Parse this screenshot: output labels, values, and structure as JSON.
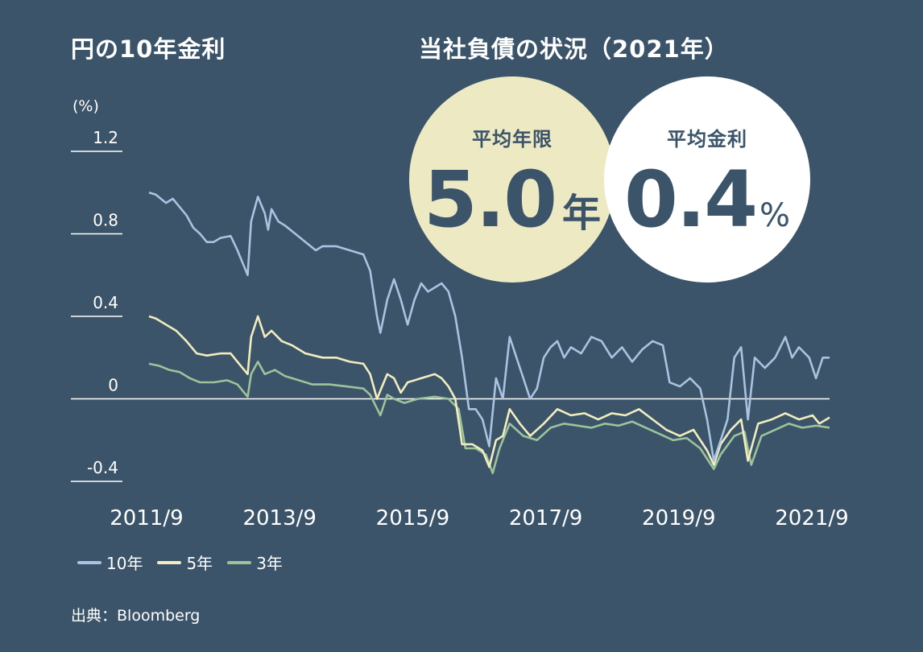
{
  "chart_title": "円の10年金利",
  "panel_title": "当社負債の状況（2021年）",
  "source": "出典：Bloomberg",
  "stats": {
    "avg_years_label": "平均年限",
    "avg_years_value": "5.0",
    "avg_years_unit": "年",
    "avg_rate_label": "平均金利",
    "avg_rate_value": "0.4",
    "avg_rate_unit": "%"
  },
  "colors": {
    "background": "#3b5469",
    "yield_10y": "#a9c3e0",
    "yield_5y": "#f2edbe",
    "yield_3y": "#9cc39a",
    "circle_years": "#ede9c2",
    "circle_rate": "#ffffff"
  },
  "chart_data": {
    "type": "line",
    "title": "円の10年金利",
    "ylabel": "(%)",
    "xlabel": "",
    "x_ticks": [
      "2011/9",
      "2013/9",
      "2015/9",
      "2017/9",
      "2019/9",
      "2021/9"
    ],
    "y_ticks": [
      "1.2",
      "0.8",
      "0.4",
      "0",
      "-0.4"
    ],
    "y_tick_values": [
      1.2,
      0.8,
      0.4,
      0,
      -0.4
    ],
    "ylim": [
      -0.4,
      1.2
    ],
    "xlim": [
      2011.75,
      2021.75
    ],
    "zero_line": true,
    "legend_position": "bottom-left",
    "series": [
      {
        "name": "10年",
        "color": "#a9c3e0",
        "points": [
          [
            2011.75,
            1.0
          ],
          [
            2011.85,
            0.99
          ],
          [
            2012.0,
            0.95
          ],
          [
            2012.1,
            0.97
          ],
          [
            2012.2,
            0.93
          ],
          [
            2012.3,
            0.89
          ],
          [
            2012.4,
            0.83
          ],
          [
            2012.5,
            0.8
          ],
          [
            2012.6,
            0.76
          ],
          [
            2012.7,
            0.76
          ],
          [
            2012.8,
            0.78
          ],
          [
            2012.95,
            0.79
          ],
          [
            2013.05,
            0.72
          ],
          [
            2013.2,
            0.6
          ],
          [
            2013.25,
            0.86
          ],
          [
            2013.35,
            0.98
          ],
          [
            2013.45,
            0.9
          ],
          [
            2013.5,
            0.82
          ],
          [
            2013.55,
            0.92
          ],
          [
            2013.65,
            0.86
          ],
          [
            2013.75,
            0.84
          ],
          [
            2013.9,
            0.8
          ],
          [
            2014.05,
            0.76
          ],
          [
            2014.2,
            0.72
          ],
          [
            2014.3,
            0.74
          ],
          [
            2014.5,
            0.74
          ],
          [
            2014.7,
            0.72
          ],
          [
            2014.9,
            0.7
          ],
          [
            2015.0,
            0.62
          ],
          [
            2015.1,
            0.4
          ],
          [
            2015.15,
            0.32
          ],
          [
            2015.25,
            0.48
          ],
          [
            2015.35,
            0.58
          ],
          [
            2015.45,
            0.48
          ],
          [
            2015.55,
            0.36
          ],
          [
            2015.65,
            0.48
          ],
          [
            2015.75,
            0.56
          ],
          [
            2015.85,
            0.52
          ],
          [
            2015.95,
            0.54
          ],
          [
            2016.05,
            0.56
          ],
          [
            2016.15,
            0.52
          ],
          [
            2016.25,
            0.4
          ],
          [
            2016.35,
            0.2
          ],
          [
            2016.45,
            -0.05
          ],
          [
            2016.55,
            -0.05
          ],
          [
            2016.65,
            -0.1
          ],
          [
            2016.75,
            -0.23
          ],
          [
            2016.85,
            0.1
          ],
          [
            2016.95,
            0.0
          ],
          [
            2017.05,
            0.3
          ],
          [
            2017.15,
            0.2
          ],
          [
            2017.25,
            0.1
          ],
          [
            2017.35,
            0.0
          ],
          [
            2017.45,
            0.05
          ],
          [
            2017.55,
            0.2
          ],
          [
            2017.65,
            0.25
          ],
          [
            2017.75,
            0.28
          ],
          [
            2017.85,
            0.2
          ],
          [
            2017.95,
            0.25
          ],
          [
            2018.1,
            0.22
          ],
          [
            2018.25,
            0.3
          ],
          [
            2018.4,
            0.28
          ],
          [
            2018.55,
            0.2
          ],
          [
            2018.7,
            0.25
          ],
          [
            2018.85,
            0.18
          ],
          [
            2019.0,
            0.24
          ],
          [
            2019.15,
            0.28
          ],
          [
            2019.3,
            0.26
          ],
          [
            2019.4,
            0.08
          ],
          [
            2019.55,
            0.06
          ],
          [
            2019.7,
            0.1
          ],
          [
            2019.85,
            0.05
          ],
          [
            2019.95,
            -0.1
          ],
          [
            2020.05,
            -0.3
          ],
          [
            2020.15,
            -0.2
          ],
          [
            2020.25,
            -0.1
          ],
          [
            2020.35,
            0.2
          ],
          [
            2020.45,
            0.25
          ],
          [
            2020.55,
            -0.1
          ],
          [
            2020.65,
            0.2
          ],
          [
            2020.8,
            0.15
          ],
          [
            2020.95,
            0.2
          ],
          [
            2021.1,
            0.3
          ],
          [
            2021.2,
            0.2
          ],
          [
            2021.3,
            0.25
          ],
          [
            2021.45,
            0.2
          ],
          [
            2021.55,
            0.1
          ],
          [
            2021.65,
            0.2
          ],
          [
            2021.75,
            0.2
          ]
        ]
      },
      {
        "name": "5年",
        "color": "#f2edbe",
        "points": [
          [
            2011.75,
            0.4
          ],
          [
            2011.85,
            0.39
          ],
          [
            2012.0,
            0.36
          ],
          [
            2012.15,
            0.33
          ],
          [
            2012.3,
            0.28
          ],
          [
            2012.45,
            0.22
          ],
          [
            2012.6,
            0.21
          ],
          [
            2012.8,
            0.22
          ],
          [
            2012.95,
            0.22
          ],
          [
            2013.05,
            0.18
          ],
          [
            2013.2,
            0.12
          ],
          [
            2013.25,
            0.3
          ],
          [
            2013.35,
            0.4
          ],
          [
            2013.45,
            0.3
          ],
          [
            2013.55,
            0.33
          ],
          [
            2013.7,
            0.28
          ],
          [
            2013.85,
            0.26
          ],
          [
            2014.05,
            0.22
          ],
          [
            2014.3,
            0.2
          ],
          [
            2014.5,
            0.2
          ],
          [
            2014.7,
            0.18
          ],
          [
            2014.9,
            0.17
          ],
          [
            2015.0,
            0.12
          ],
          [
            2015.1,
            0.0
          ],
          [
            2015.15,
            0.04
          ],
          [
            2015.25,
            0.12
          ],
          [
            2015.35,
            0.1
          ],
          [
            2015.45,
            0.03
          ],
          [
            2015.55,
            0.08
          ],
          [
            2015.75,
            0.1
          ],
          [
            2015.95,
            0.12
          ],
          [
            2016.05,
            0.1
          ],
          [
            2016.15,
            0.06
          ],
          [
            2016.25,
            0.0
          ],
          [
            2016.35,
            -0.22
          ],
          [
            2016.5,
            -0.22
          ],
          [
            2016.65,
            -0.25
          ],
          [
            2016.75,
            -0.33
          ],
          [
            2016.85,
            -0.2
          ],
          [
            2016.95,
            -0.18
          ],
          [
            2017.05,
            -0.05
          ],
          [
            2017.2,
            -0.12
          ],
          [
            2017.35,
            -0.18
          ],
          [
            2017.55,
            -0.12
          ],
          [
            2017.75,
            -0.05
          ],
          [
            2017.95,
            -0.08
          ],
          [
            2018.15,
            -0.07
          ],
          [
            2018.35,
            -0.1
          ],
          [
            2018.55,
            -0.07
          ],
          [
            2018.75,
            -0.08
          ],
          [
            2018.95,
            -0.05
          ],
          [
            2019.15,
            -0.1
          ],
          [
            2019.35,
            -0.15
          ],
          [
            2019.55,
            -0.18
          ],
          [
            2019.75,
            -0.15
          ],
          [
            2019.95,
            -0.25
          ],
          [
            2020.05,
            -0.32
          ],
          [
            2020.15,
            -0.22
          ],
          [
            2020.3,
            -0.15
          ],
          [
            2020.45,
            -0.1
          ],
          [
            2020.55,
            -0.3
          ],
          [
            2020.7,
            -0.12
          ],
          [
            2020.9,
            -0.1
          ],
          [
            2021.1,
            -0.07
          ],
          [
            2021.3,
            -0.1
          ],
          [
            2021.5,
            -0.08
          ],
          [
            2021.6,
            -0.12
          ],
          [
            2021.75,
            -0.09
          ]
        ]
      },
      {
        "name": "3年",
        "color": "#9cc39a",
        "points": [
          [
            2011.75,
            0.17
          ],
          [
            2011.9,
            0.16
          ],
          [
            2012.05,
            0.14
          ],
          [
            2012.2,
            0.13
          ],
          [
            2012.35,
            0.1
          ],
          [
            2012.5,
            0.08
          ],
          [
            2012.7,
            0.08
          ],
          [
            2012.9,
            0.09
          ],
          [
            2013.05,
            0.07
          ],
          [
            2013.2,
            0.01
          ],
          [
            2013.25,
            0.12
          ],
          [
            2013.35,
            0.18
          ],
          [
            2013.45,
            0.12
          ],
          [
            2013.6,
            0.14
          ],
          [
            2013.75,
            0.11
          ],
          [
            2013.95,
            0.09
          ],
          [
            2014.15,
            0.07
          ],
          [
            2014.4,
            0.07
          ],
          [
            2014.65,
            0.06
          ],
          [
            2014.9,
            0.05
          ],
          [
            2015.0,
            0.02
          ],
          [
            2015.15,
            -0.08
          ],
          [
            2015.25,
            0.02
          ],
          [
            2015.35,
            0.0
          ],
          [
            2015.5,
            -0.02
          ],
          [
            2015.7,
            0.0
          ],
          [
            2015.95,
            0.01
          ],
          [
            2016.15,
            0.0
          ],
          [
            2016.3,
            -0.05
          ],
          [
            2016.4,
            -0.24
          ],
          [
            2016.55,
            -0.24
          ],
          [
            2016.7,
            -0.27
          ],
          [
            2016.8,
            -0.36
          ],
          [
            2016.9,
            -0.24
          ],
          [
            2017.05,
            -0.12
          ],
          [
            2017.25,
            -0.18
          ],
          [
            2017.45,
            -0.2
          ],
          [
            2017.65,
            -0.14
          ],
          [
            2017.85,
            -0.12
          ],
          [
            2018.05,
            -0.13
          ],
          [
            2018.25,
            -0.14
          ],
          [
            2018.45,
            -0.12
          ],
          [
            2018.65,
            -0.13
          ],
          [
            2018.85,
            -0.11
          ],
          [
            2019.05,
            -0.14
          ],
          [
            2019.25,
            -0.17
          ],
          [
            2019.45,
            -0.2
          ],
          [
            2019.65,
            -0.19
          ],
          [
            2019.85,
            -0.24
          ],
          [
            2020.05,
            -0.34
          ],
          [
            2020.15,
            -0.27
          ],
          [
            2020.35,
            -0.18
          ],
          [
            2020.5,
            -0.16
          ],
          [
            2020.6,
            -0.32
          ],
          [
            2020.75,
            -0.18
          ],
          [
            2020.95,
            -0.15
          ],
          [
            2021.15,
            -0.12
          ],
          [
            2021.35,
            -0.14
          ],
          [
            2021.55,
            -0.13
          ],
          [
            2021.75,
            -0.14
          ]
        ]
      }
    ]
  }
}
